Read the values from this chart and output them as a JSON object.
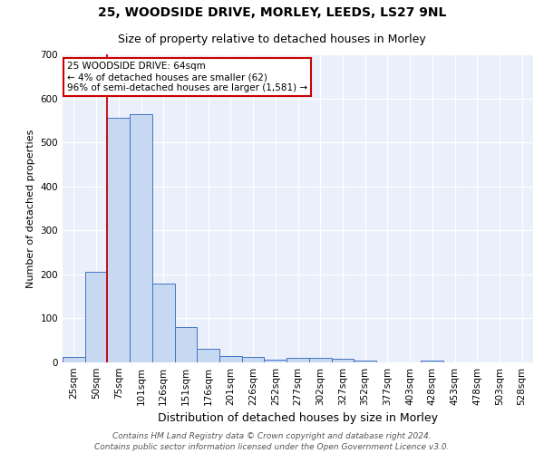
{
  "title1": "25, WOODSIDE DRIVE, MORLEY, LEEDS, LS27 9NL",
  "title2": "Size of property relative to detached houses in Morley",
  "xlabel": "Distribution of detached houses by size in Morley",
  "ylabel": "Number of detached properties",
  "categories": [
    "25sqm",
    "50sqm",
    "75sqm",
    "101sqm",
    "126sqm",
    "151sqm",
    "176sqm",
    "201sqm",
    "226sqm",
    "252sqm",
    "277sqm",
    "302sqm",
    "327sqm",
    "352sqm",
    "377sqm",
    "403sqm",
    "428sqm",
    "453sqm",
    "478sqm",
    "503sqm",
    "528sqm"
  ],
  "values": [
    12,
    205,
    555,
    565,
    180,
    80,
    30,
    14,
    13,
    6,
    10,
    10,
    8,
    5,
    0,
    0,
    4,
    0,
    0,
    0,
    0
  ],
  "bar_color": "#c6d9f0",
  "bar_edge_color": "#4472c4",
  "bg_color": "#eaf0fb",
  "grid_color": "#ffffff",
  "red_line_x": 1.5,
  "annotation_text": "25 WOODSIDE DRIVE: 64sqm\n← 4% of detached houses are smaller (62)\n96% of semi-detached houses are larger (1,581) →",
  "annotation_box_color": "#ffffff",
  "annotation_border_color": "#cc0000",
  "ylim": [
    0,
    700
  ],
  "yticks": [
    0,
    100,
    200,
    300,
    400,
    500,
    600,
    700
  ],
  "footer_text": "Contains HM Land Registry data © Crown copyright and database right 2024.\nContains public sector information licensed under the Open Government Licence v3.0.",
  "title1_fontsize": 10,
  "title2_fontsize": 9,
  "xlabel_fontsize": 9,
  "ylabel_fontsize": 8,
  "tick_fontsize": 7.5,
  "footer_fontsize": 6.5,
  "ann_fontsize": 7.5
}
